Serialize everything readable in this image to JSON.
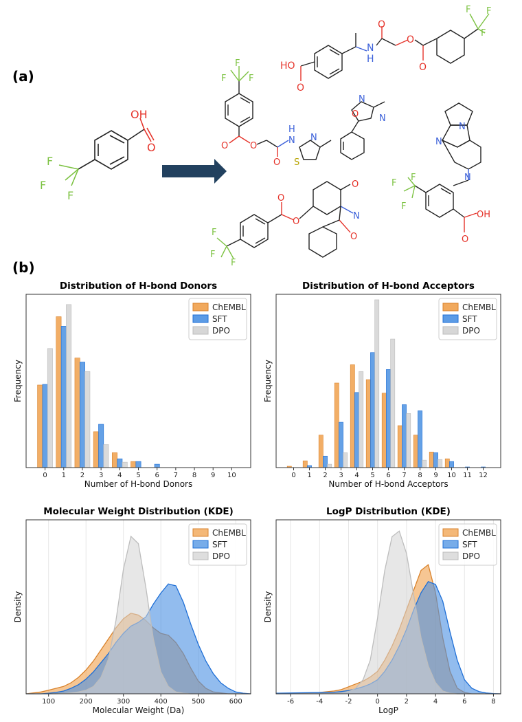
{
  "panel_labels": {
    "a": "(a)",
    "b": "(b)"
  },
  "molecules": {
    "hydroxyl": "OH",
    "carbonyl_o": "O",
    "fluorine": "F",
    "ester_o": "O",
    "nitrogen": "N",
    "amide_nh_n": "N",
    "amide_nh_h": "H",
    "sulfur": "S",
    "product2_ho": "HO",
    "acid_oh": "OH"
  },
  "colors": {
    "chembl": "#F0A04B",
    "sft": "#4A90E2",
    "dpo": "#D3D3D3",
    "fluorine": "#7CC242",
    "oxygen": "#E5332A",
    "nitrogen": "#3A5FD9",
    "sulfur": "#B7A400",
    "arrow": "#22415F"
  },
  "chart_data": [
    {
      "type": "bar",
      "title": "Distribution of H-bond Donors",
      "xlabel": "Number of H-bond Donors",
      "ylabel": "Frequency",
      "categories": [
        "0",
        "1",
        "2",
        "3",
        "4",
        "5",
        "6",
        "7",
        "8",
        "9",
        "10"
      ],
      "ylim": [
        0,
        250
      ],
      "series": [
        {
          "name": "ChEMBL",
          "values": [
            122,
            223,
            162,
            53,
            22,
            9,
            0,
            0,
            0,
            0,
            0
          ]
        },
        {
          "name": "SFT",
          "values": [
            123,
            209,
            156,
            64,
            13,
            9,
            5,
            0,
            0,
            0,
            0
          ]
        },
        {
          "name": "DPO",
          "values": [
            176,
            241,
            142,
            34,
            8,
            0,
            0,
            0,
            0,
            0,
            0
          ]
        }
      ],
      "legend": [
        "ChEMBL",
        "SFT",
        "DPO"
      ]
    },
    {
      "type": "bar",
      "title": "Distribution of H-bond Acceptors",
      "xlabel": "Number of H-bond Acceptors",
      "ylabel": "Frequency",
      "categories": [
        "0",
        "1",
        "2",
        "3",
        "4",
        "5",
        "6",
        "7",
        "8",
        "9",
        "10",
        "11",
        "12"
      ],
      "ylim": [
        0,
        250
      ],
      "series": [
        {
          "name": "ChEMBL",
          "values": [
            2,
            10,
            48,
            125,
            152,
            130,
            110,
            62,
            48,
            23,
            13,
            0,
            0
          ]
        },
        {
          "name": "SFT",
          "values": [
            0,
            3,
            17,
            67,
            111,
            170,
            145,
            93,
            84,
            22,
            9,
            1,
            1
          ]
        },
        {
          "name": "DPO",
          "values": [
            0,
            0,
            5,
            22,
            142,
            248,
            190,
            80,
            11,
            12,
            0,
            0,
            0
          ]
        }
      ],
      "legend": [
        "ChEMBL",
        "SFT",
        "DPO"
      ]
    },
    {
      "type": "area",
      "title": "Molecular Weight Distribution (KDE)",
      "xlabel": "Molecular Weight (Da)",
      "ylabel": "Density",
      "xlim": [
        40,
        640
      ],
      "ylim": [
        0,
        0.0095
      ],
      "xticks": [
        100,
        200,
        300,
        400,
        500,
        600
      ],
      "series": [
        {
          "name": "ChEMBL",
          "x": [
            40,
            60,
            80,
            100,
            120,
            140,
            160,
            180,
            200,
            220,
            240,
            260,
            280,
            300,
            320,
            340,
            360,
            380,
            400,
            420,
            440,
            460,
            480,
            500,
            520,
            540,
            560,
            580,
            600,
            620,
            640
          ],
          "y": [
            0,
            5e-05,
            0.0001,
            0.0002,
            0.0003,
            0.0004,
            0.0006,
            0.0009,
            0.0013,
            0.0018,
            0.0024,
            0.003,
            0.0036,
            0.0041,
            0.0044,
            0.0043,
            0.004,
            0.0036,
            0.0033,
            0.0032,
            0.0028,
            0.0022,
            0.0014,
            0.0007,
            0.0003,
            0.0001,
            5e-05,
            0,
            0,
            0,
            0
          ]
        },
        {
          "name": "SFT",
          "x": [
            40,
            60,
            80,
            100,
            120,
            140,
            160,
            180,
            200,
            220,
            240,
            260,
            280,
            300,
            320,
            340,
            360,
            380,
            400,
            420,
            440,
            460,
            480,
            500,
            520,
            540,
            560,
            580,
            600,
            620,
            640
          ],
          "y": [
            0,
            0,
            0,
            3e-05,
            8e-05,
            0.00015,
            0.0003,
            0.0005,
            0.0008,
            0.0012,
            0.0017,
            0.0022,
            0.0028,
            0.0033,
            0.0037,
            0.0039,
            0.0042,
            0.0049,
            0.0055,
            0.006,
            0.0059,
            0.005,
            0.0038,
            0.0027,
            0.0018,
            0.0011,
            0.0006,
            0.0003,
            0.0001,
            3e-05,
            0
          ]
        },
        {
          "name": "DPO",
          "x": [
            40,
            60,
            80,
            100,
            120,
            140,
            160,
            180,
            200,
            220,
            240,
            260,
            280,
            300,
            320,
            340,
            360,
            380,
            400,
            420,
            440,
            460,
            480,
            500,
            520,
            540,
            560,
            580,
            600,
            620,
            640
          ],
          "y": [
            0,
            0,
            0,
            0,
            0,
            2e-05,
            5e-05,
            0.0001,
            0.0002,
            0.0004,
            0.0009,
            0.0019,
            0.004,
            0.0068,
            0.0086,
            0.0082,
            0.0058,
            0.003,
            0.0012,
            0.0004,
            0.0001,
            3e-05,
            0,
            0,
            0,
            0,
            0,
            0,
            0,
            0,
            0
          ]
        }
      ],
      "legend": [
        "ChEMBL",
        "SFT",
        "DPO"
      ]
    },
    {
      "type": "area",
      "title": "LogP Distribution (KDE)",
      "xlabel": "LogP",
      "ylabel": "Density",
      "xlim": [
        -7,
        8.5
      ],
      "ylim": [
        0,
        0.62
      ],
      "xticks": [
        -6,
        -4,
        -2,
        0,
        2,
        4,
        6,
        8
      ],
      "series": [
        {
          "name": "ChEMBL",
          "x": [
            -7,
            -6,
            -5,
            -4,
            -3,
            -2.5,
            -2,
            -1.5,
            -1,
            -0.5,
            0,
            0.5,
            1,
            1.5,
            2,
            2.5,
            3,
            3.5,
            4,
            4.5,
            5,
            5.5,
            6,
            6.5,
            7,
            7.5,
            8,
            8.5
          ],
          "y": [
            0,
            0.002,
            0.003,
            0.005,
            0.01,
            0.015,
            0.025,
            0.035,
            0.045,
            0.06,
            0.08,
            0.12,
            0.17,
            0.23,
            0.3,
            0.37,
            0.44,
            0.46,
            0.36,
            0.2,
            0.08,
            0.02,
            0.005,
            0,
            0,
            0,
            0,
            0
          ]
        },
        {
          "name": "SFT",
          "x": [
            -7,
            -6,
            -5,
            -4,
            -3,
            -2.5,
            -2,
            -1.5,
            -1,
            -0.5,
            0,
            0.5,
            1,
            1.5,
            2,
            2.5,
            3,
            3.5,
            4,
            4.5,
            5,
            5.5,
            6,
            6.5,
            7,
            7.5,
            8,
            8.5
          ],
          "y": [
            0.002,
            0.003,
            0.004,
            0.005,
            0.006,
            0.008,
            0.012,
            0.018,
            0.025,
            0.035,
            0.05,
            0.08,
            0.12,
            0.17,
            0.23,
            0.3,
            0.36,
            0.4,
            0.39,
            0.33,
            0.22,
            0.12,
            0.05,
            0.02,
            0.008,
            0.003,
            0.001,
            0
          ]
        },
        {
          "name": "DPO",
          "x": [
            -7,
            -6,
            -5,
            -4,
            -3,
            -2.5,
            -2,
            -1.5,
            -1,
            -0.5,
            0,
            0.5,
            1,
            1.5,
            2,
            2.5,
            3,
            3.5,
            4,
            4.5,
            5,
            5.5,
            6,
            6.5,
            7,
            7.5,
            8,
            8.5
          ],
          "y": [
            0,
            0,
            0,
            0,
            0.001,
            0.003,
            0.008,
            0.02,
            0.05,
            0.12,
            0.27,
            0.44,
            0.56,
            0.58,
            0.5,
            0.35,
            0.2,
            0.1,
            0.04,
            0.01,
            0.002,
            0,
            0,
            0,
            0,
            0,
            0,
            0
          ]
        }
      ],
      "legend": [
        "ChEMBL",
        "SFT",
        "DPO"
      ]
    }
  ]
}
